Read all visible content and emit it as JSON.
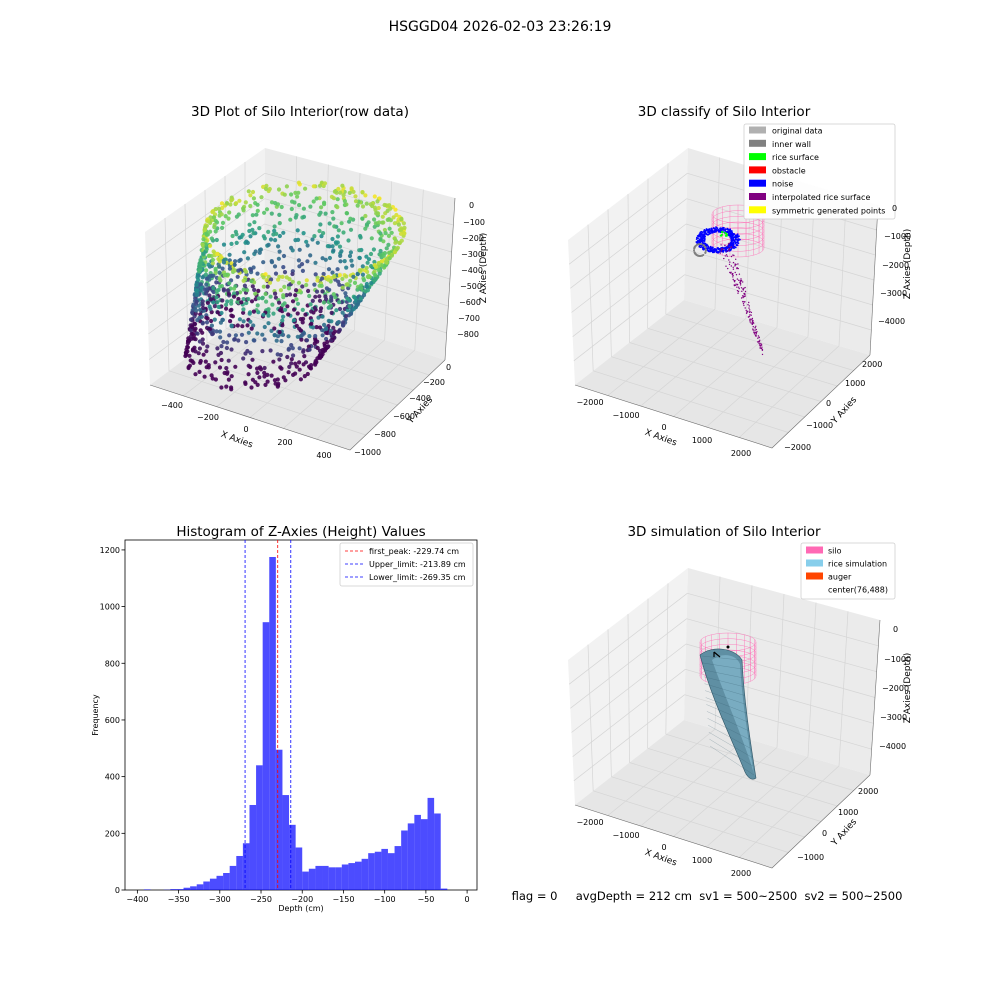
{
  "figure": {
    "suptitle": "HSGGD04 2026-02-03 23:26:19"
  },
  "panel1": {
    "title": "3D Plot of Silo Interior(row data)",
    "xlabel": "X Axies",
    "ylabel": "Y Axies",
    "zlabel": "Z Axies (Depth)",
    "xticks": [
      "−400",
      "−200",
      "0",
      "200",
      "400"
    ],
    "yticks": [
      "0",
      "−200",
      "−400",
      "−600",
      "−800",
      "−1000"
    ],
    "zticks": [
      "0",
      "−100",
      "−200",
      "−300",
      "−400",
      "−500",
      "−600",
      "−700",
      "−800"
    ]
  },
  "panel2": {
    "title": "3D classify of Silo Interior",
    "xlabel": "X Axies",
    "ylabel": "Y Axies",
    "zlabel": "Z Axies (Depth)",
    "xticks": [
      "−2000",
      "−1000",
      "0",
      "1000",
      "2000"
    ],
    "yticks": [
      "2000",
      "1000",
      "0",
      "−1000",
      "−2000"
    ],
    "zticks": [
      "0",
      "−1000",
      "−2000",
      "−3000",
      "−4000"
    ],
    "legend": [
      {
        "label": "original data",
        "color": "#b0b0b0"
      },
      {
        "label": "inner wall",
        "color": "#808080"
      },
      {
        "label": "rice surface",
        "color": "#00ff00"
      },
      {
        "label": "obstacle",
        "color": "#ff0000"
      },
      {
        "label": "noise",
        "color": "#0000ff"
      },
      {
        "label": "interpolated rice surface",
        "color": "#800080"
      },
      {
        "label": "symmetric generated points",
        "color": "#ffff00"
      }
    ]
  },
  "panel4": {
    "title": "3D simulation of Silo Interior",
    "xlabel": "X Axies",
    "ylabel": "Y Axies",
    "zlabel": "Z Axies (Depth)",
    "xticks": [
      "−2000",
      "−1000",
      "0",
      "1000",
      "2000"
    ],
    "yticks": [
      "2000",
      "1000",
      "0",
      "−1000"
    ],
    "zticks": [
      "0",
      "−1000",
      "−2000",
      "−3000",
      "−4000"
    ],
    "legend": [
      {
        "label": "silo",
        "color": "#ff69b4"
      },
      {
        "label": "rice simulation",
        "color": "#87ceeb"
      },
      {
        "label": "auger",
        "color": "#ff4500"
      },
      {
        "label": "center(76,488)",
        "color": ""
      }
    ]
  },
  "status": {
    "text": "flag = 0     avgDepth = 212 cm  sv1 = 500~2500  sv2 = 500~2500"
  },
  "chart_data": {
    "type": "bar",
    "title": "Histogram of Z-Axies (Height) Values",
    "xlabel": "Depth (cm)",
    "ylabel": "Frequency",
    "xlim": [
      -415,
      12
    ],
    "ylim": [
      0,
      1235
    ],
    "xticks": [
      -400,
      -350,
      -300,
      -250,
      -200,
      -150,
      -100,
      -50,
      0
    ],
    "yticks": [
      0,
      200,
      400,
      600,
      800,
      1000,
      1200
    ],
    "bin_width": 8,
    "bins_start": [
      -400,
      -392,
      -384,
      -376,
      -368,
      -360,
      -352,
      -344,
      -336,
      -328,
      -320,
      -312,
      -304,
      -296,
      -288,
      -280,
      -272,
      -264,
      -256,
      -248,
      -240,
      -232,
      -224,
      -216,
      -208,
      -200,
      -192,
      -184,
      -176,
      -168,
      -160,
      -152,
      -144,
      -136,
      -128,
      -120,
      -112,
      -104,
      -96,
      -88,
      -80,
      -72,
      -64,
      -56,
      -48,
      -40,
      -32,
      -24,
      -16,
      -8
    ],
    "values": [
      0,
      2,
      0,
      0,
      1,
      3,
      3,
      8,
      13,
      20,
      30,
      40,
      50,
      60,
      85,
      120,
      165,
      300,
      440,
      945,
      1175,
      495,
      335,
      230,
      150,
      65,
      75,
      85,
      85,
      80,
      80,
      90,
      95,
      100,
      110,
      130,
      135,
      145,
      130,
      155,
      210,
      235,
      265,
      250,
      325,
      270,
      5,
      0,
      0,
      0
    ],
    "color": "#0000ff",
    "vlines": [
      {
        "x": -229.74,
        "label": "first_peak: -229.74 cm",
        "color": "#ff0000"
      },
      {
        "x": -213.89,
        "label": "Upper_limit: -213.89 cm",
        "color": "#0000ff"
      },
      {
        "x": -269.35,
        "label": "Lower_limit: -269.35 cm",
        "color": "#0000ff"
      }
    ]
  }
}
